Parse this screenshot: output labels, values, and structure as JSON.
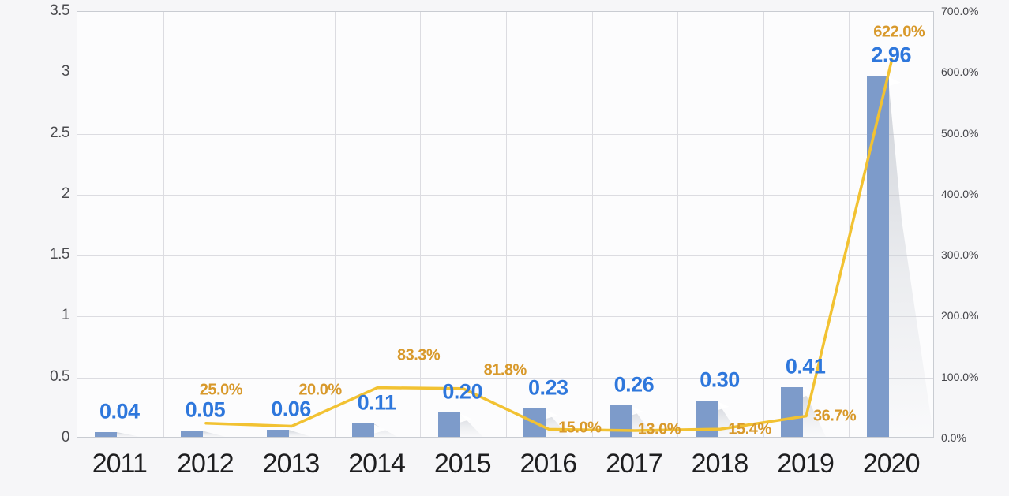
{
  "chart_data": {
    "type": "combo-bar-line",
    "title": "",
    "categories": [
      "2011",
      "2012",
      "2013",
      "2014",
      "2015",
      "2016",
      "2017",
      "2018",
      "2019",
      "2020"
    ],
    "series": [
      {
        "name": "value",
        "type": "bar",
        "values": [
          0.04,
          0.05,
          0.06,
          0.11,
          0.2,
          0.23,
          0.26,
          0.3,
          0.41,
          2.96
        ],
        "labels": [
          "0.04",
          "0.05",
          "0.06",
          "0.11",
          "0.20",
          "0.23",
          "0.26",
          "0.30",
          "0.41",
          "2.96"
        ],
        "axis": "left"
      },
      {
        "name": "growth-rate",
        "type": "line",
        "values": [
          null,
          25.0,
          20.0,
          83.3,
          81.8,
          15.0,
          13.0,
          15.4,
          36.7,
          622.0
        ],
        "labels": [
          null,
          "25.0%",
          "20.0%",
          "83.3%",
          "81.8%",
          "15.0%",
          "13.0%",
          "15.4%",
          "36.7%",
          "622.0%"
        ],
        "axis": "right"
      }
    ],
    "left_axis": {
      "min": 0,
      "max": 3.5,
      "tick_values": [
        3.5,
        3,
        2.5,
        2,
        1.5,
        1,
        0.5,
        0
      ],
      "tick_labels": [
        "3.5",
        "3",
        "2.5",
        "2",
        "1.5",
        "1",
        "0.5",
        "0"
      ]
    },
    "right_axis": {
      "min": 0,
      "max": 700,
      "tick_values": [
        700,
        600,
        500,
        400,
        300,
        200,
        100,
        0
      ],
      "tick_labels": [
        "700.0%",
        "600.0%",
        "500.0%",
        "400.0%",
        "300.0%",
        "200.0%",
        "100.0%",
        "0.0%"
      ]
    },
    "grid": true,
    "legend": "none"
  },
  "colors": {
    "bar": "#7d9bca",
    "bar_value_label": "#2e77dc",
    "line": "#f2c232",
    "line_pct_label": "#d8992b",
    "background": "#f6f6f8",
    "plot_background": "#fcfcfd",
    "gridline": "#dcdce1",
    "axis_tick_text": "#4a4a4e",
    "category_text": "#1e1e20",
    "shadow": "#b8bdc6"
  }
}
